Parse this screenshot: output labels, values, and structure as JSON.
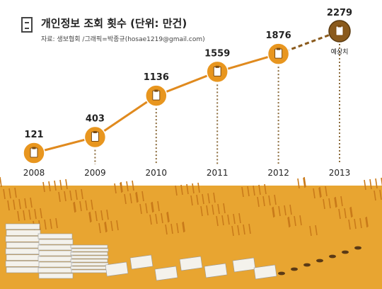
{
  "header": {
    "title": "개인정보 조회 횟수 (단위: 만건)",
    "source": "자료: 생보협회 /그래픽=박종규(hosae1219@gmail.com)",
    "icon": "filing-cabinet-icon"
  },
  "colors": {
    "line": "#e08a1e",
    "marker": "#e8961f",
    "forecast_marker": "#8a5a1c",
    "dots": "#8a6a3a",
    "field": "#e8a531",
    "field_dark": "#c97a1a"
  },
  "chart_data": {
    "type": "line",
    "title": "개인정보 조회 횟수 (단위: 만건)",
    "x": [
      "2008",
      "2009",
      "2010",
      "2011",
      "2012",
      "2013"
    ],
    "series": [
      {
        "values": [
          121,
          403,
          1136,
          1559,
          1876,
          2279
        ]
      }
    ],
    "annotations": [
      {
        "x": "2013",
        "text": "예상치"
      }
    ],
    "forecast_from": "2012",
    "grid": false,
    "legend": "none"
  }
}
